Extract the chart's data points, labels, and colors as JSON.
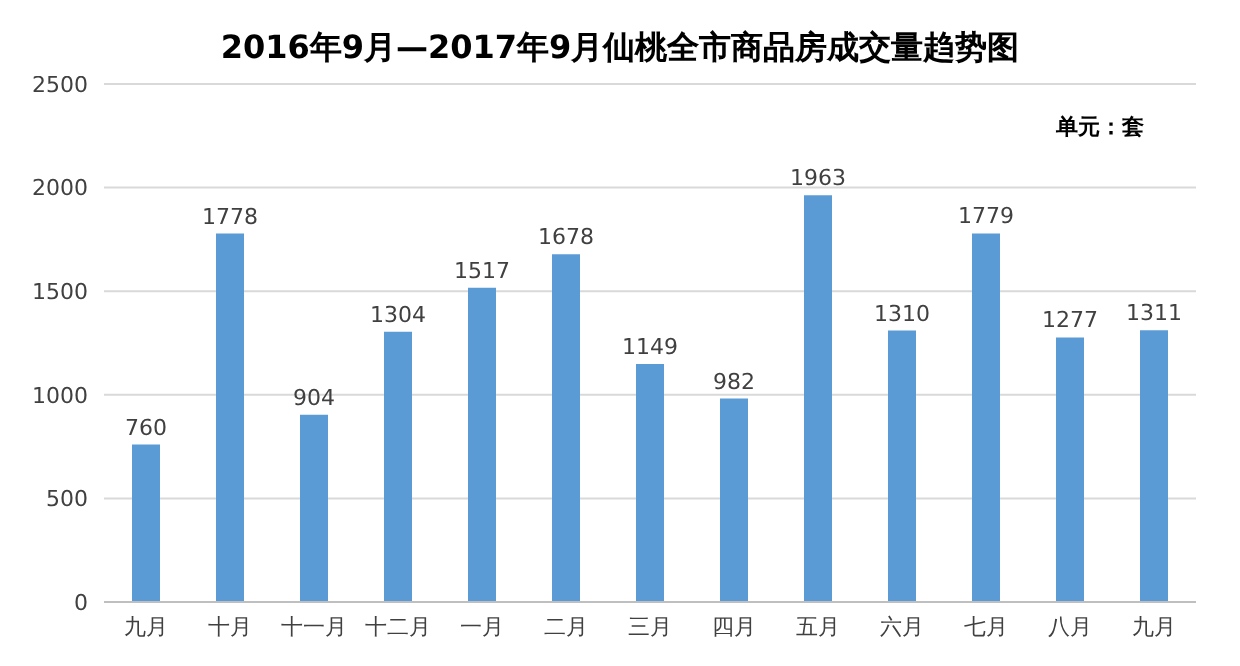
{
  "chart_data": {
    "type": "bar",
    "title": "2016年9月—2017年9月仙桃全市商品房成交量趋势图",
    "annotations": [
      "单元：套"
    ],
    "categories": [
      "九月",
      "十月",
      "十一月",
      "十二月",
      "一月",
      "二月",
      "三月",
      "四月",
      "五月",
      "六月",
      "七月",
      "八月",
      "九月"
    ],
    "values": [
      760,
      1778,
      904,
      1304,
      1517,
      1678,
      1149,
      982,
      1963,
      1310,
      1779,
      1277,
      1311
    ],
    "color": "#5b9bd5",
    "ylim": [
      0,
      2500
    ],
    "yticks": [
      0,
      500,
      1000,
      1500,
      2000,
      2500
    ],
    "grid": "y",
    "data_labels": true
  }
}
